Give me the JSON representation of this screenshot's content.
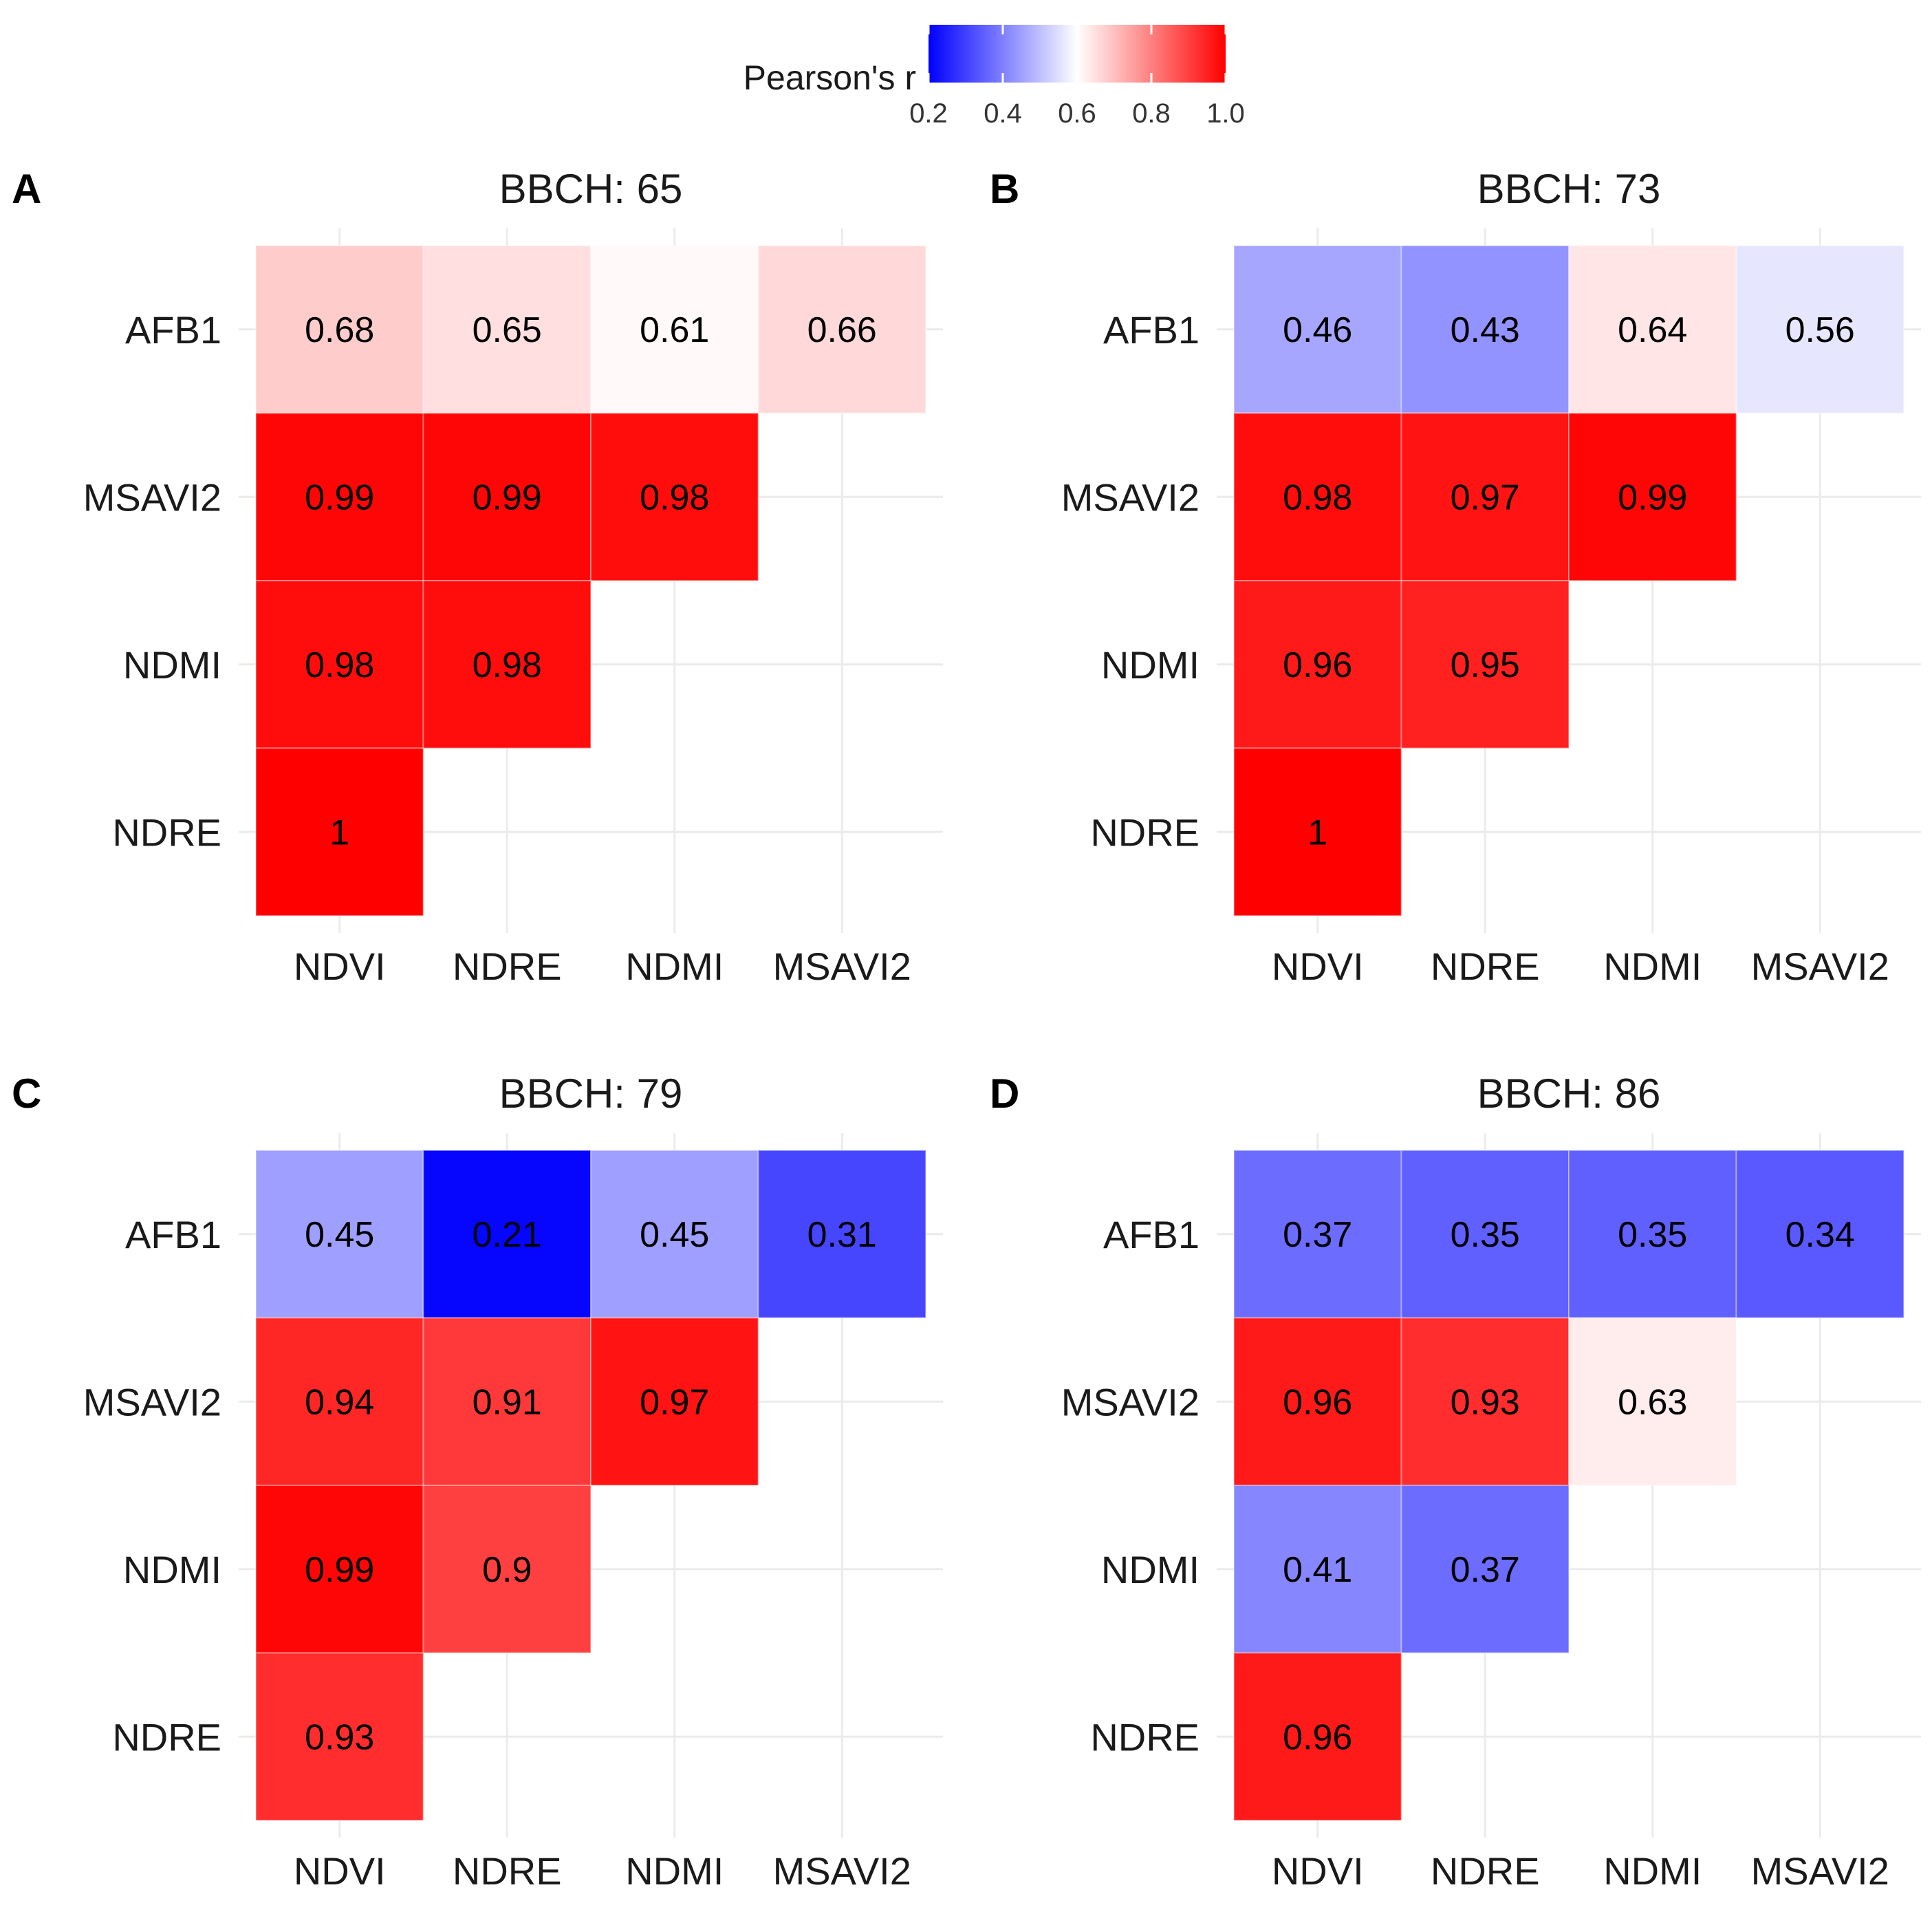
{
  "legend": {
    "title": "Pearson's r",
    "ticks": [
      "0.2",
      "0.4",
      "0.6",
      "0.8",
      "1.0"
    ],
    "tick_values": [
      0.2,
      0.4,
      0.6,
      0.8,
      1.0
    ],
    "range": [
      0.2,
      1.0
    ],
    "midpoint": 0.6,
    "colors": {
      "low": "#0000ff",
      "mid": "#ffffff",
      "high": "#ff0000"
    },
    "placement": "top-center"
  },
  "chart_data": [
    {
      "type": "heatmap",
      "panel_label": "A",
      "title": "BBCH: 65",
      "x_categories": [
        "NDVI",
        "NDRE",
        "NDMI",
        "MSAVI2"
      ],
      "y_categories": [
        "AFB1",
        "MSAVI2",
        "NDMI",
        "NDRE"
      ],
      "cells": [
        {
          "row": "AFB1",
          "col": "NDVI",
          "value": 0.68,
          "label": "0.68"
        },
        {
          "row": "AFB1",
          "col": "NDRE",
          "value": 0.65,
          "label": "0.65"
        },
        {
          "row": "AFB1",
          "col": "NDMI",
          "value": 0.61,
          "label": "0.61"
        },
        {
          "row": "AFB1",
          "col": "MSAVI2",
          "value": 0.66,
          "label": "0.66"
        },
        {
          "row": "MSAVI2",
          "col": "NDVI",
          "value": 0.99,
          "label": "0.99"
        },
        {
          "row": "MSAVI2",
          "col": "NDRE",
          "value": 0.99,
          "label": "0.99"
        },
        {
          "row": "MSAVI2",
          "col": "NDMI",
          "value": 0.98,
          "label": "0.98"
        },
        {
          "row": "NDMI",
          "col": "NDVI",
          "value": 0.98,
          "label": "0.98"
        },
        {
          "row": "NDMI",
          "col": "NDRE",
          "value": 0.98,
          "label": "0.98"
        },
        {
          "row": "NDRE",
          "col": "NDVI",
          "value": 1.0,
          "label": "1"
        }
      ]
    },
    {
      "type": "heatmap",
      "panel_label": "B",
      "title": "BBCH: 73",
      "x_categories": [
        "NDVI",
        "NDRE",
        "NDMI",
        "MSAVI2"
      ],
      "y_categories": [
        "AFB1",
        "MSAVI2",
        "NDMI",
        "NDRE"
      ],
      "cells": [
        {
          "row": "AFB1",
          "col": "NDVI",
          "value": 0.46,
          "label": "0.46"
        },
        {
          "row": "AFB1",
          "col": "NDRE",
          "value": 0.43,
          "label": "0.43"
        },
        {
          "row": "AFB1",
          "col": "NDMI",
          "value": 0.64,
          "label": "0.64"
        },
        {
          "row": "AFB1",
          "col": "MSAVI2",
          "value": 0.56,
          "label": "0.56"
        },
        {
          "row": "MSAVI2",
          "col": "NDVI",
          "value": 0.98,
          "label": "0.98"
        },
        {
          "row": "MSAVI2",
          "col": "NDRE",
          "value": 0.97,
          "label": "0.97"
        },
        {
          "row": "MSAVI2",
          "col": "NDMI",
          "value": 0.99,
          "label": "0.99"
        },
        {
          "row": "NDMI",
          "col": "NDVI",
          "value": 0.96,
          "label": "0.96"
        },
        {
          "row": "NDMI",
          "col": "NDRE",
          "value": 0.95,
          "label": "0.95"
        },
        {
          "row": "NDRE",
          "col": "NDVI",
          "value": 1.0,
          "label": "1"
        }
      ]
    },
    {
      "type": "heatmap",
      "panel_label": "C",
      "title": "BBCH: 79",
      "x_categories": [
        "NDVI",
        "NDRE",
        "NDMI",
        "MSAVI2"
      ],
      "y_categories": [
        "AFB1",
        "MSAVI2",
        "NDMI",
        "NDRE"
      ],
      "cells": [
        {
          "row": "AFB1",
          "col": "NDVI",
          "value": 0.45,
          "label": "0.45"
        },
        {
          "row": "AFB1",
          "col": "NDRE",
          "value": 0.21,
          "label": "0.21"
        },
        {
          "row": "AFB1",
          "col": "NDMI",
          "value": 0.45,
          "label": "0.45"
        },
        {
          "row": "AFB1",
          "col": "MSAVI2",
          "value": 0.31,
          "label": "0.31"
        },
        {
          "row": "MSAVI2",
          "col": "NDVI",
          "value": 0.94,
          "label": "0.94"
        },
        {
          "row": "MSAVI2",
          "col": "NDRE",
          "value": 0.91,
          "label": "0.91"
        },
        {
          "row": "MSAVI2",
          "col": "NDMI",
          "value": 0.97,
          "label": "0.97"
        },
        {
          "row": "NDMI",
          "col": "NDVI",
          "value": 0.99,
          "label": "0.99"
        },
        {
          "row": "NDMI",
          "col": "NDRE",
          "value": 0.9,
          "label": "0.9"
        },
        {
          "row": "NDRE",
          "col": "NDVI",
          "value": 0.93,
          "label": "0.93"
        }
      ]
    },
    {
      "type": "heatmap",
      "panel_label": "D",
      "title": "BBCH: 86",
      "x_categories": [
        "NDVI",
        "NDRE",
        "NDMI",
        "MSAVI2"
      ],
      "y_categories": [
        "AFB1",
        "MSAVI2",
        "NDMI",
        "NDRE"
      ],
      "cells": [
        {
          "row": "AFB1",
          "col": "NDVI",
          "value": 0.37,
          "label": "0.37"
        },
        {
          "row": "AFB1",
          "col": "NDRE",
          "value": 0.35,
          "label": "0.35"
        },
        {
          "row": "AFB1",
          "col": "NDMI",
          "value": 0.35,
          "label": "0.35"
        },
        {
          "row": "AFB1",
          "col": "MSAVI2",
          "value": 0.34,
          "label": "0.34"
        },
        {
          "row": "MSAVI2",
          "col": "NDVI",
          "value": 0.96,
          "label": "0.96"
        },
        {
          "row": "MSAVI2",
          "col": "NDRE",
          "value": 0.93,
          "label": "0.93"
        },
        {
          "row": "MSAVI2",
          "col": "NDMI",
          "value": 0.63,
          "label": "0.63"
        },
        {
          "row": "NDMI",
          "col": "NDVI",
          "value": 0.41,
          "label": "0.41"
        },
        {
          "row": "NDMI",
          "col": "NDRE",
          "value": 0.37,
          "label": "0.37"
        },
        {
          "row": "NDRE",
          "col": "NDVI",
          "value": 0.96,
          "label": "0.96"
        }
      ]
    }
  ]
}
